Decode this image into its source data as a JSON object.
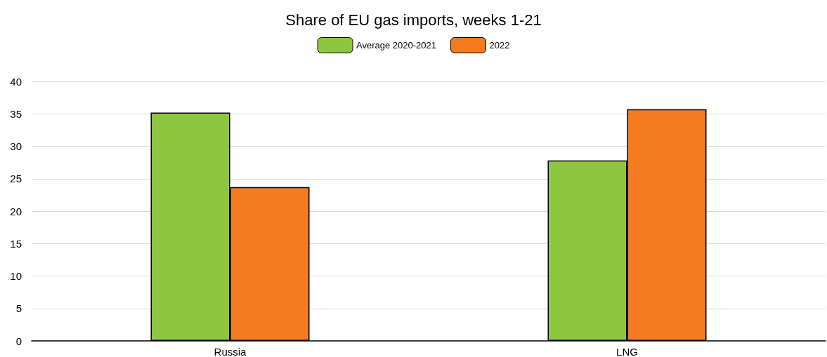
{
  "chart_data": {
    "type": "bar",
    "title": "Share of EU gas imports, weeks 1-21",
    "categories": [
      "Russia",
      "LNG"
    ],
    "series": [
      {
        "name": "Average 2020-2021",
        "color": "#8dc63f",
        "values": [
          35.2,
          27.8
        ]
      },
      {
        "name": "2022",
        "color": "#f47b20",
        "values": [
          23.7,
          35.7
        ]
      }
    ],
    "ylim": [
      0,
      40
    ],
    "yticks": [
      0,
      5,
      10,
      15,
      20,
      25,
      30,
      35,
      40
    ],
    "grid": "y",
    "legend": "top"
  }
}
